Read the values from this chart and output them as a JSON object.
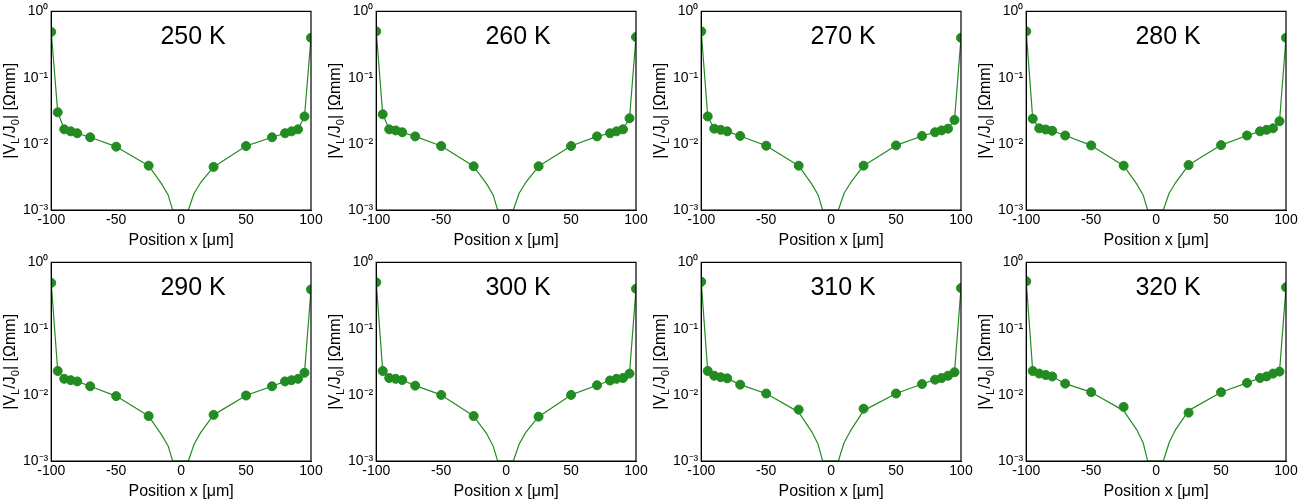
{
  "chart_data": [
    {
      "type": "scatter",
      "title": "250 K",
      "xlabel": "Position x [μm]",
      "ylabel": "|V$_{L}$/J$_{0}$| [Ωmm]",
      "log": "y",
      "grid": false,
      "xlim": [
        -100,
        100
      ],
      "xticks": [
        -100,
        -50,
        0,
        50,
        100
      ],
      "ylim": [
        0.001,
        1
      ],
      "yticks": [
        {
          "value": 1,
          "label": "10⁰"
        },
        {
          "value": 0.1,
          "label": "10⁻¹"
        },
        {
          "value": 0.01,
          "label": "10⁻²"
        },
        {
          "value": 0.001,
          "label": "10⁻³"
        }
      ],
      "series": [
        {
          "marker": "circle",
          "color": "#228b22",
          "x": [
            -100,
            -95,
            -90,
            -85,
            -80,
            -70,
            -50,
            -25,
            25,
            50,
            70,
            80,
            85,
            90,
            95,
            100
          ],
          "values": [
            0.49,
            0.03,
            0.0166,
            0.0155,
            0.0145,
            0.0126,
            0.0091,
            0.0047,
            0.0045,
            0.0093,
            0.0126,
            0.0145,
            0.0155,
            0.0166,
            0.026,
            0.4
          ]
        },
        {
          "type": "line",
          "marker": "none",
          "color": "#228b22",
          "x": [
            -100,
            -95,
            -90,
            -85,
            -80,
            -70,
            -50,
            -25,
            -15,
            -10,
            -6.5,
            5.5,
            10,
            15,
            25,
            50,
            70,
            80,
            85,
            90,
            95,
            100
          ],
          "values": [
            0.49,
            0.03,
            0.0166,
            0.0155,
            0.0145,
            0.0126,
            0.0091,
            0.0047,
            0.0025,
            0.0017,
            0.001,
            0.001,
            0.0018,
            0.0026,
            0.0045,
            0.0093,
            0.0126,
            0.0145,
            0.0155,
            0.0166,
            0.026,
            0.4
          ]
        }
      ]
    },
    {
      "type": "scatter",
      "title": "260 K",
      "xlabel": "Position x [μm]",
      "ylabel": "|V$_{L}$/J$_{0}$| [Ωmm]",
      "log": "y",
      "grid": false,
      "xlim": [
        -100,
        100
      ],
      "xticks": [
        -100,
        -50,
        0,
        50,
        100
      ],
      "ylim": [
        0.001,
        1
      ],
      "yticks": [
        {
          "value": 1,
          "label": "10⁰"
        },
        {
          "value": 0.1,
          "label": "10⁻¹"
        },
        {
          "value": 0.01,
          "label": "10⁻²"
        },
        {
          "value": 0.001,
          "label": "10⁻³"
        }
      ],
      "series": [
        {
          "marker": "circle",
          "color": "#228b22",
          "x": [
            -100,
            -95,
            -90,
            -85,
            -80,
            -70,
            -50,
            -25,
            25,
            50,
            70,
            80,
            85,
            90,
            95,
            100
          ],
          "values": [
            0.5,
            0.028,
            0.0166,
            0.016,
            0.015,
            0.013,
            0.0093,
            0.0046,
            0.0046,
            0.0093,
            0.013,
            0.0145,
            0.0155,
            0.0166,
            0.0244,
            0.41
          ]
        },
        {
          "type": "line",
          "marker": "none",
          "color": "#228b22",
          "x": [
            -100,
            -95,
            -90,
            -85,
            -80,
            -70,
            -50,
            -25,
            -15,
            -10,
            -6.5,
            5.5,
            10,
            15,
            25,
            50,
            70,
            80,
            85,
            90,
            95,
            100
          ],
          "values": [
            0.5,
            0.028,
            0.0166,
            0.016,
            0.015,
            0.013,
            0.0093,
            0.0046,
            0.0025,
            0.0017,
            0.001,
            0.001,
            0.0018,
            0.0026,
            0.0046,
            0.0093,
            0.013,
            0.0145,
            0.0155,
            0.0166,
            0.0244,
            0.41
          ]
        }
      ]
    },
    {
      "type": "scatter",
      "title": "270 K",
      "xlabel": "Position x [μm]",
      "ylabel": "|V$_{L}$/J$_{0}$| [Ωmm]",
      "log": "y",
      "grid": false,
      "xlim": [
        -100,
        100
      ],
      "xticks": [
        -100,
        -50,
        0,
        50,
        100
      ],
      "ylim": [
        0.001,
        1
      ],
      "yticks": [
        {
          "value": 1,
          "label": "10⁰"
        },
        {
          "value": 0.1,
          "label": "10⁻¹"
        },
        {
          "value": 0.01,
          "label": "10⁻²"
        },
        {
          "value": 0.001,
          "label": "10⁻³"
        }
      ],
      "series": [
        {
          "marker": "circle",
          "color": "#228b22",
          "x": [
            -100,
            -95,
            -90,
            -85,
            -80,
            -70,
            -50,
            -25,
            25,
            50,
            70,
            80,
            85,
            90,
            95,
            100
          ],
          "values": [
            0.5,
            0.026,
            0.017,
            0.0163,
            0.0155,
            0.0132,
            0.0094,
            0.0047,
            0.0047,
            0.0095,
            0.0132,
            0.015,
            0.016,
            0.017,
            0.023,
            0.4
          ]
        },
        {
          "type": "line",
          "marker": "none",
          "color": "#228b22",
          "x": [
            -100,
            -95,
            -90,
            -85,
            -80,
            -70,
            -50,
            -25,
            -15,
            -10,
            -6.5,
            5.5,
            10,
            15,
            25,
            50,
            70,
            80,
            85,
            90,
            95,
            100
          ],
          "values": [
            0.5,
            0.026,
            0.017,
            0.0163,
            0.0155,
            0.0132,
            0.0094,
            0.0047,
            0.0025,
            0.0017,
            0.001,
            0.001,
            0.0018,
            0.0026,
            0.0047,
            0.0095,
            0.0132,
            0.015,
            0.016,
            0.017,
            0.023,
            0.4
          ]
        }
      ]
    },
    {
      "type": "scatter",
      "title": "280 K",
      "xlabel": "Position x [μm]",
      "ylabel": "|V$_{L}$/J$_{0}$| [Ωmm]",
      "log": "y",
      "grid": false,
      "xlim": [
        -100,
        100
      ],
      "xticks": [
        -100,
        -50,
        0,
        50,
        100
      ],
      "ylim": [
        0.001,
        1
      ],
      "yticks": [
        {
          "value": 1,
          "label": "10⁰"
        },
        {
          "value": 0.1,
          "label": "10⁻¹"
        },
        {
          "value": 0.01,
          "label": "10⁻²"
        },
        {
          "value": 0.001,
          "label": "10⁻³"
        }
      ],
      "series": [
        {
          "marker": "circle",
          "color": "#228b22",
          "x": [
            -100,
            -95,
            -90,
            -85,
            -80,
            -70,
            -50,
            -25,
            25,
            50,
            70,
            80,
            85,
            90,
            95,
            100
          ],
          "values": [
            0.5,
            0.024,
            0.0172,
            0.0165,
            0.0158,
            0.0134,
            0.0095,
            0.0047,
            0.0048,
            0.0096,
            0.0134,
            0.0155,
            0.0163,
            0.0172,
            0.022,
            0.4
          ]
        },
        {
          "type": "line",
          "marker": "none",
          "color": "#228b22",
          "x": [
            -100,
            -95,
            -90,
            -85,
            -80,
            -70,
            -50,
            -25,
            -15,
            -10,
            -6.5,
            5.5,
            10,
            15,
            25,
            50,
            70,
            80,
            85,
            90,
            95,
            100
          ],
          "values": [
            0.5,
            0.024,
            0.0172,
            0.0165,
            0.0158,
            0.0134,
            0.0095,
            0.0047,
            0.0025,
            0.0017,
            0.001,
            0.001,
            0.0018,
            0.0026,
            0.0048,
            0.0096,
            0.0134,
            0.0155,
            0.0163,
            0.0172,
            0.022,
            0.4
          ]
        }
      ]
    },
    {
      "type": "scatter",
      "title": "290 K",
      "xlabel": "Position x [μm]",
      "ylabel": "|V$_{L}$/J$_{0}$| [Ωmm]",
      "log": "y",
      "grid": false,
      "xlim": [
        -100,
        100
      ],
      "xticks": [
        -100,
        -50,
        0,
        50,
        100
      ],
      "ylim": [
        0.001,
        1
      ],
      "yticks": [
        {
          "value": 1,
          "label": "10⁰"
        },
        {
          "value": 0.1,
          "label": "10⁻¹"
        },
        {
          "value": 0.01,
          "label": "10⁻²"
        },
        {
          "value": 0.001,
          "label": "10⁻³"
        }
      ],
      "series": [
        {
          "marker": "circle",
          "color": "#228b22",
          "x": [
            -100,
            -95,
            -90,
            -85,
            -80,
            -70,
            -50,
            -25,
            25,
            50,
            70,
            80,
            85,
            90,
            95,
            100
          ],
          "values": [
            0.49,
            0.023,
            0.0175,
            0.0167,
            0.016,
            0.0135,
            0.0096,
            0.0048,
            0.005,
            0.0098,
            0.0135,
            0.016,
            0.0167,
            0.0175,
            0.0216,
            0.39
          ]
        },
        {
          "type": "line",
          "marker": "none",
          "color": "#228b22",
          "x": [
            -100,
            -95,
            -90,
            -85,
            -80,
            -70,
            -50,
            -25,
            -15,
            -10,
            -6.5,
            5.5,
            10,
            15,
            25,
            50,
            70,
            80,
            85,
            90,
            95,
            100
          ],
          "values": [
            0.49,
            0.023,
            0.0175,
            0.0167,
            0.016,
            0.0135,
            0.0096,
            0.0048,
            0.0025,
            0.0017,
            0.001,
            0.001,
            0.0018,
            0.0027,
            0.005,
            0.0098,
            0.0135,
            0.016,
            0.0167,
            0.0175,
            0.0216,
            0.39
          ]
        }
      ]
    },
    {
      "type": "scatter",
      "title": "300 K",
      "xlabel": "Position x [μm]",
      "ylabel": "|V$_{L}$/J$_{0}$| [Ωmm]",
      "log": "y",
      "grid": false,
      "xlim": [
        -100,
        100
      ],
      "xticks": [
        -100,
        -50,
        0,
        50,
        100
      ],
      "ylim": [
        0.001,
        1
      ],
      "yticks": [
        {
          "value": 1,
          "label": "10⁰"
        },
        {
          "value": 0.1,
          "label": "10⁻¹"
        },
        {
          "value": 0.01,
          "label": "10⁻²"
        },
        {
          "value": 0.001,
          "label": "10⁻³"
        }
      ],
      "series": [
        {
          "marker": "circle",
          "color": "#228b22",
          "x": [
            -100,
            -95,
            -90,
            -85,
            -80,
            -70,
            -50,
            -25,
            25,
            50,
            70,
            80,
            85,
            90,
            95,
            100
          ],
          "values": [
            0.5,
            0.023,
            0.018,
            0.0175,
            0.0168,
            0.0138,
            0.01,
            0.0048,
            0.0047,
            0.01,
            0.014,
            0.0165,
            0.0175,
            0.018,
            0.021,
            0.4
          ]
        },
        {
          "type": "line",
          "marker": "none",
          "color": "#228b22",
          "x": [
            -100,
            -95,
            -90,
            -85,
            -80,
            -70,
            -50,
            -25,
            -15,
            -10,
            -6.5,
            5.5,
            10,
            15,
            25,
            50,
            70,
            80,
            85,
            90,
            95,
            100
          ],
          "values": [
            0.5,
            0.023,
            0.018,
            0.0175,
            0.0168,
            0.0138,
            0.01,
            0.0048,
            0.0026,
            0.0017,
            0.001,
            0.001,
            0.0018,
            0.0027,
            0.0047,
            0.01,
            0.014,
            0.0165,
            0.0175,
            0.018,
            0.021,
            0.4
          ]
        }
      ]
    },
    {
      "type": "scatter",
      "title": "310 K",
      "xlabel": "Position x [μm]",
      "ylabel": "|V$_{L}$/J$_{0}$| [Ωmm]",
      "log": "y",
      "grid": false,
      "xlim": [
        -100,
        100
      ],
      "xticks": [
        -100,
        -50,
        0,
        50,
        100
      ],
      "ylim": [
        0.001,
        1
      ],
      "yticks": [
        {
          "value": 1,
          "label": "10⁰"
        },
        {
          "value": 0.1,
          "label": "10⁻¹"
        },
        {
          "value": 0.01,
          "label": "10⁻²"
        },
        {
          "value": 0.001,
          "label": "10⁻³"
        }
      ],
      "series": [
        {
          "marker": "circle",
          "color": "#228b22",
          "x": [
            -100,
            -95,
            -90,
            -85,
            -80,
            -70,
            -50,
            -25,
            25,
            50,
            70,
            80,
            85,
            90,
            95,
            100
          ],
          "values": [
            0.51,
            0.023,
            0.0195,
            0.0185,
            0.0178,
            0.0143,
            0.0105,
            0.006,
            0.0062,
            0.0105,
            0.0146,
            0.017,
            0.018,
            0.0195,
            0.022,
            0.41
          ]
        },
        {
          "type": "line",
          "marker": "none",
          "color": "#228b22",
          "x": [
            -100,
            -95,
            -90,
            -85,
            -80,
            -70,
            -50,
            -25,
            -15,
            -10,
            -6.5,
            5.5,
            10,
            15,
            25,
            50,
            70,
            80,
            85,
            90,
            95,
            100
          ],
          "values": [
            0.51,
            0.023,
            0.0195,
            0.0185,
            0.0178,
            0.0143,
            0.0105,
            0.0055,
            0.0028,
            0.0018,
            0.001,
            0.001,
            0.0019,
            0.0029,
            0.0058,
            0.0105,
            0.0146,
            0.017,
            0.018,
            0.0195,
            0.022,
            0.41
          ]
        }
      ]
    },
    {
      "type": "scatter",
      "title": "320 K",
      "xlabel": "Position x [μm]",
      "ylabel": "|V$_{L}$/J$_{0}$| [Ωmm]",
      "log": "y",
      "grid": false,
      "xlim": [
        -100,
        100
      ],
      "xticks": [
        -100,
        -50,
        0,
        50,
        100
      ],
      "ylim": [
        0.001,
        1
      ],
      "yticks": [
        {
          "value": 1,
          "label": "10⁰"
        },
        {
          "value": 0.1,
          "label": "10⁻¹"
        },
        {
          "value": 0.01,
          "label": "10⁻²"
        },
        {
          "value": 0.001,
          "label": "10⁻³"
        }
      ],
      "series": [
        {
          "marker": "circle",
          "color": "#228b22",
          "x": [
            -100,
            -95,
            -90,
            -85,
            -80,
            -70,
            -50,
            -25,
            25,
            50,
            70,
            80,
            85,
            90,
            95,
            100
          ],
          "values": [
            0.52,
            0.023,
            0.021,
            0.02,
            0.019,
            0.0148,
            0.011,
            0.0066,
            0.0054,
            0.011,
            0.0152,
            0.018,
            0.019,
            0.021,
            0.0225,
            0.42
          ]
        },
        {
          "type": "line",
          "marker": "none",
          "color": "#228b22",
          "x": [
            -100,
            -95,
            -90,
            -85,
            -80,
            -70,
            -50,
            -25,
            -15,
            -10,
            -6.5,
            5.5,
            10,
            15,
            25,
            50,
            70,
            80,
            85,
            90,
            95,
            100
          ],
          "values": [
            0.52,
            0.023,
            0.021,
            0.02,
            0.019,
            0.0148,
            0.011,
            0.0058,
            0.003,
            0.0019,
            0.001,
            0.001,
            0.0019,
            0.003,
            0.0058,
            0.011,
            0.0152,
            0.018,
            0.019,
            0.021,
            0.0225,
            0.42
          ]
        }
      ]
    }
  ]
}
